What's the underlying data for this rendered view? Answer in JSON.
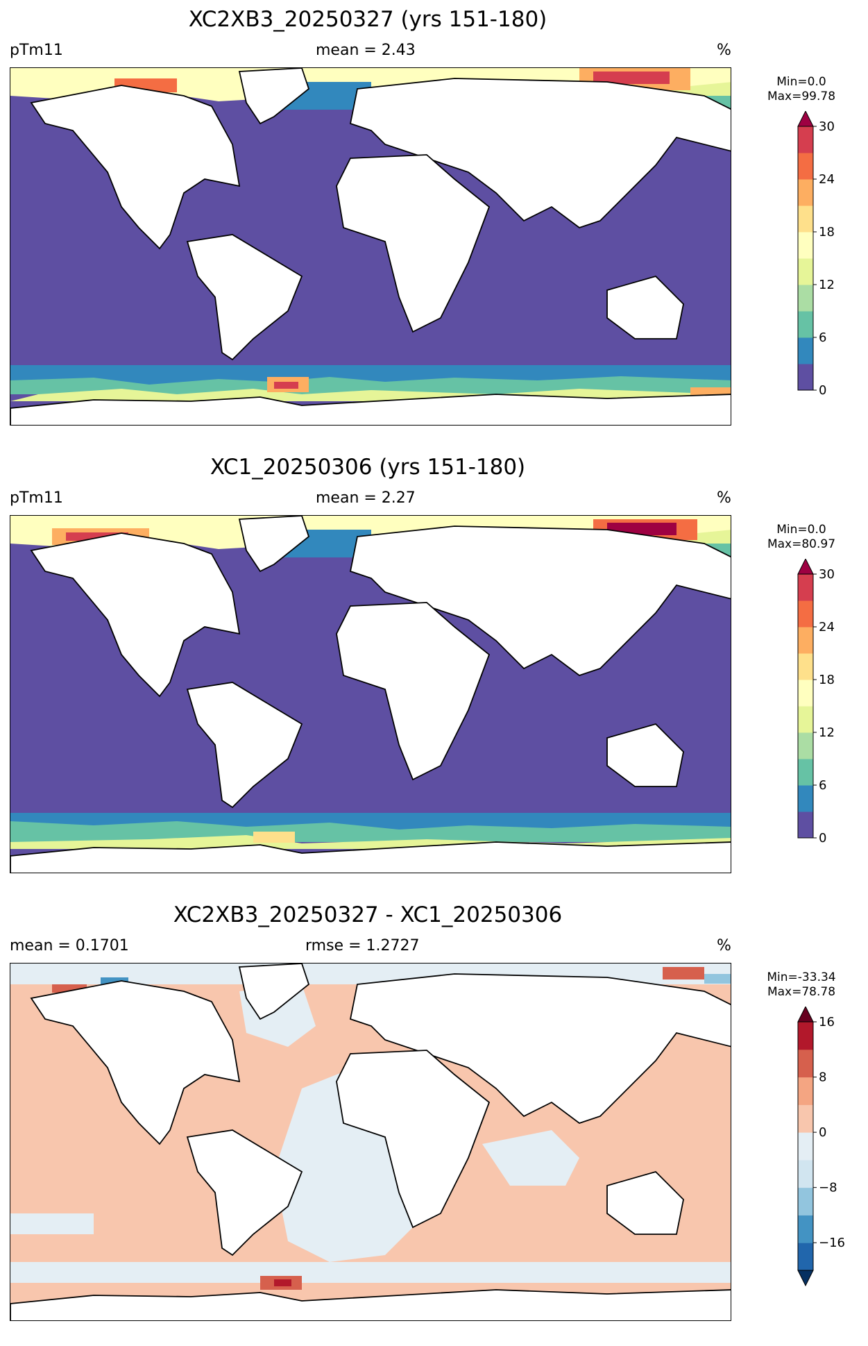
{
  "panels": [
    {
      "title": "XC2XB3_20250327 (yrs 151-180)",
      "left_label": "pTm11",
      "center_label": "mean = 2.43",
      "right_label": "%",
      "min_label": "Min=0.0",
      "max_label": "Max=99.78",
      "colorbar": {
        "colors": [
          "#5e4fa2",
          "#3288bd",
          "#66c2a5",
          "#abdda4",
          "#e6f598",
          "#ffffbf",
          "#fee08b",
          "#fdae61",
          "#f46d43",
          "#d53e4f",
          "#9e0142"
        ],
        "ticks": [
          "0",
          "6",
          "12",
          "18",
          "24",
          "30"
        ],
        "extend": "max"
      }
    },
    {
      "title": "XC1_20250306 (yrs 151-180)",
      "left_label": "pTm11",
      "center_label": "mean = 2.27",
      "right_label": "%",
      "min_label": "Min=0.0",
      "max_label": "Max=80.97",
      "colorbar": {
        "colors": [
          "#5e4fa2",
          "#3288bd",
          "#66c2a5",
          "#abdda4",
          "#e6f598",
          "#ffffbf",
          "#fee08b",
          "#fdae61",
          "#f46d43",
          "#d53e4f",
          "#9e0142"
        ],
        "ticks": [
          "0",
          "6",
          "12",
          "18",
          "24",
          "30"
        ],
        "extend": "max"
      }
    },
    {
      "title": "XC2XB3_20250327 - XC1_20250306",
      "left_label": "mean = 0.1701",
      "center_label": "rmse = 1.2727",
      "right_label": "%",
      "min_label": "Min=-33.34",
      "max_label": "Max=78.78",
      "colorbar": {
        "colors": [
          "#053061",
          "#2166ac",
          "#4393c3",
          "#92c5de",
          "#d1e5f0",
          "#e4eef4",
          "#f8c6ad",
          "#f4a582",
          "#d6604d",
          "#b2182b",
          "#67001f"
        ],
        "ticks": [
          "−16",
          "−8",
          "0",
          "8",
          "16"
        ],
        "extend": "both"
      }
    }
  ]
}
